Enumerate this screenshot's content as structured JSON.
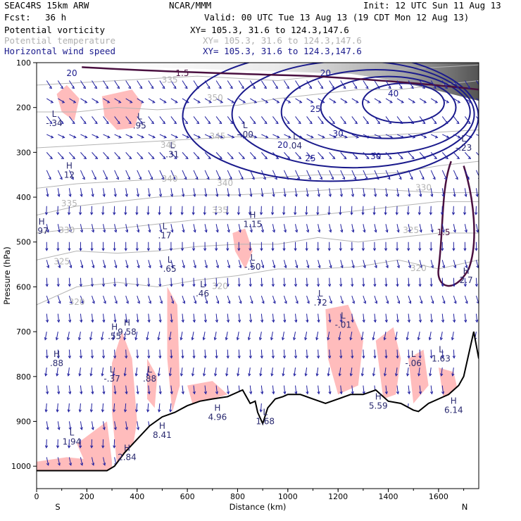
{
  "header": {
    "model": "SEAC4RS 15km ARW",
    "org": "NCAR/MMM",
    "init": "Init: 12 UTC Sun 11 Aug 13",
    "fcst_label": "Fcst:",
    "fcst_value": "36 h",
    "valid": "Valid: 00 UTC Tue 13 Aug 13 (19 CDT Mon 12 Aug 13)",
    "fields": [
      {
        "name": "Potential vorticity",
        "xy": "XY= 105.3, 31.6 to 124.3,147.6"
      },
      {
        "name": "Potential temperature",
        "xy": "XY= 105.3, 31.6 to 124.3,147.6"
      },
      {
        "name": "Horizontal wind speed",
        "xy": "XY= 105.3, 31.6 to 124.3,147.6"
      }
    ]
  },
  "colors": {
    "pv": "#4a1040",
    "theta": "#b4b4b4",
    "wind": "#1a1a8c",
    "vectors": "#2020a0",
    "shade_pink": "#ffbcbc",
    "terrain": "#000000"
  },
  "chart_data": {
    "type": "cross-section",
    "xlabel": "Distance (km)",
    "ylabel": "Pressure (hPa)",
    "xlim": [
      0,
      1760
    ],
    "ylim": [
      1050,
      100
    ],
    "x_ticks": [
      0,
      200,
      400,
      600,
      800,
      1000,
      1200,
      1400,
      1600
    ],
    "y_ticks": [
      100,
      200,
      300,
      400,
      500,
      600,
      700,
      800,
      900,
      1000
    ],
    "x_end_labels": {
      "left": "S",
      "right": "N"
    },
    "terrain": {
      "x": [
        0,
        150,
        280,
        310,
        350,
        400,
        450,
        500,
        550,
        600,
        650,
        700,
        760,
        820,
        850,
        870,
        880,
        900,
        920,
        950,
        980,
        1000,
        1050,
        1100,
        1150,
        1200,
        1250,
        1300,
        1350,
        1400,
        1450,
        1500,
        1520,
        1560,
        1600,
        1640,
        1680,
        1700,
        1740,
        1760
      ],
      "p": [
        1010,
        1010,
        1010,
        1000,
        970,
        940,
        910,
        890,
        880,
        865,
        855,
        850,
        845,
        830,
        860,
        855,
        880,
        905,
        870,
        850,
        845,
        840,
        840,
        850,
        860,
        850,
        840,
        840,
        830,
        855,
        860,
        875,
        878,
        860,
        850,
        840,
        820,
        800,
        700,
        760
      ]
    },
    "theta_isentropes": [
      {
        "value": 320,
        "p": [
          640,
          600,
          590,
          600,
          585,
          575,
          560,
          560,
          555,
          540,
          560,
          540
        ]
      },
      {
        "value": 325,
        "p": [
          540,
          520,
          525,
          520,
          510,
          505,
          505,
          490,
          500,
          490,
          480,
          480
        ]
      },
      {
        "value": 330,
        "p": [
          480,
          470,
          470,
          460,
          450,
          450,
          445,
          440,
          430,
          420,
          410,
          410
        ]
      },
      {
        "value": 335,
        "p": [
          440,
          420,
          410,
          400,
          395,
          395,
          390,
          385,
          380,
          385,
          390,
          390
        ]
      },
      {
        "value": 340,
        "p": [
          380,
          370,
          365,
          360,
          360,
          360,
          355,
          350,
          350,
          345,
          330,
          320
        ]
      },
      {
        "value": 345,
        "p": [
          290,
          285,
          280,
          275,
          270,
          265,
          270,
          270,
          265,
          260,
          255,
          250
        ]
      },
      {
        "value": 350,
        "p": [
          210,
          210,
          200,
          205,
          200,
          195,
          180,
          170,
          160,
          160,
          150,
          140
        ]
      },
      {
        "value": 355,
        "p": [
          150,
          145,
          140,
          135,
          130,
          135,
          140,
          130,
          120,
          115,
          110,
          105
        ]
      }
    ],
    "theta_x": [
      0,
      160,
      320,
      480,
      640,
      800,
      960,
      1120,
      1280,
      1440,
      1600,
      1760
    ],
    "wind_speed_contours": [
      {
        "value": 20,
        "center_x": 1170,
        "center_p": 220
      },
      {
        "value": 25,
        "center_x": 1260,
        "center_p": 215
      },
      {
        "value": 30,
        "center_x": 1350,
        "center_p": 210
      },
      {
        "value": 35,
        "center_x": 1400,
        "center_p": 200
      },
      {
        "value": 40,
        "center_x": 1460,
        "center_p": 190
      }
    ],
    "contour_labels": [
      {
        "text": "20",
        "x": 140,
        "p": 130,
        "kind": "wind"
      },
      {
        "text": "20",
        "x": 1150,
        "p": 130,
        "kind": "wind"
      },
      {
        "text": "20",
        "x": 980,
        "p": 290,
        "kind": "wind"
      },
      {
        "text": "25",
        "x": 1110,
        "p": 210,
        "kind": "wind"
      },
      {
        "text": "25",
        "x": 1090,
        "p": 320,
        "kind": "wind"
      },
      {
        "text": "30",
        "x": 1200,
        "p": 265,
        "kind": "wind"
      },
      {
        "text": "30",
        "x": 1350,
        "p": 315,
        "kind": "wind"
      },
      {
        "text": "40",
        "x": 1420,
        "p": 175,
        "kind": "wind"
      },
      {
        "text": "335",
        "x": 530,
        "p": 145,
        "kind": "theta"
      },
      {
        "text": "350",
        "x": 710,
        "p": 185,
        "kind": "theta"
      },
      {
        "text": "345",
        "x": 525,
        "p": 290,
        "kind": "theta"
      },
      {
        "text": "345",
        "x": 720,
        "p": 270,
        "kind": "theta"
      },
      {
        "text": "340",
        "x": 530,
        "p": 365,
        "kind": "theta"
      },
      {
        "text": "340",
        "x": 750,
        "p": 375,
        "kind": "theta"
      },
      {
        "text": "335",
        "x": 130,
        "p": 420,
        "kind": "theta"
      },
      {
        "text": "335",
        "x": 730,
        "p": 435,
        "kind": "theta"
      },
      {
        "text": "330",
        "x": 120,
        "p": 480,
        "kind": "theta"
      },
      {
        "text": "330",
        "x": 1540,
        "p": 385,
        "kind": "theta"
      },
      {
        "text": "325",
        "x": 100,
        "p": 550,
        "kind": "theta"
      },
      {
        "text": "325",
        "x": 1490,
        "p": 480,
        "kind": "theta"
      },
      {
        "text": "320",
        "x": 160,
        "p": 640,
        "kind": "theta"
      },
      {
        "text": "320",
        "x": 730,
        "p": 605,
        "kind": "theta"
      },
      {
        "text": "320",
        "x": 1520,
        "p": 565,
        "kind": "theta"
      },
      {
        "text": "1.5",
        "x": 580,
        "p": 130,
        "kind": "pv"
      },
      {
        "text": "1.5",
        "x": 1620,
        "p": 485,
        "kind": "pv"
      }
    ],
    "hl_markers": [
      {
        "type": "L",
        "value": "-.34",
        "x": 70,
        "p": 240
      },
      {
        "type": "H",
        "value": "12",
        "x": 130,
        "p": 355
      },
      {
        "type": "L",
        "value": ".95",
        "x": 410,
        "p": 245
      },
      {
        "type": "L",
        "value": ".31",
        "x": 540,
        "p": 310
      },
      {
        "type": "L",
        "value": "-.00",
        "x": 830,
        "p": 265
      },
      {
        "type": "L",
        "value": ".04",
        "x": 1030,
        "p": 290
      },
      {
        "type": "L",
        "value": ".17",
        "x": 510,
        "p": 490
      },
      {
        "type": "H",
        "value": "1.15",
        "x": 860,
        "p": 465
      },
      {
        "type": "H",
        "value": ".97",
        "x": 20,
        "p": 480
      },
      {
        "type": "L",
        "value": ".65",
        "x": 530,
        "p": 565
      },
      {
        "type": "L",
        "value": "-.50",
        "x": 860,
        "p": 560
      },
      {
        "type": "L",
        "value": ".46",
        "x": 660,
        "p": 620
      },
      {
        "type": "L",
        "value": ".72",
        "x": 1130,
        "p": 640
      },
      {
        "type": "L",
        "value": "-.01",
        "x": 1220,
        "p": 690
      },
      {
        "type": "H",
        "value": ".55",
        "x": 310,
        "p": 715
      },
      {
        "type": "H",
        "value": "9.58",
        "x": 360,
        "p": 705
      },
      {
        "type": "H",
        "value": ".88",
        "x": 80,
        "p": 775
      },
      {
        "type": "L",
        "value": "-.37",
        "x": 300,
        "p": 810
      },
      {
        "type": "L",
        "value": ".88",
        "x": 450,
        "p": 810
      },
      {
        "type": "L",
        "value": "-.06",
        "x": 1500,
        "p": 775
      },
      {
        "type": "L",
        "value": "1.63",
        "x": 1610,
        "p": 765
      },
      {
        "type": "H",
        "value": "5.59",
        "x": 1360,
        "p": 870
      },
      {
        "type": "H",
        "value": "6.14",
        "x": 1660,
        "p": 880
      },
      {
        "type": "H",
        "value": "4.96",
        "x": 720,
        "p": 895
      },
      {
        "type": "L",
        "value": "1.68",
        "x": 910,
        "p": 905
      },
      {
        "type": "H",
        "value": "8.41",
        "x": 500,
        "p": 935
      },
      {
        "type": "L",
        "value": "1.94",
        "x": 140,
        "p": 950
      },
      {
        "type": "H",
        "value": "2.84",
        "x": 360,
        "p": 985
      },
      {
        "type": "H",
        "value": "2.7",
        "x": 1710,
        "p": 590
      },
      {
        "type": "L",
        "value": "-.23",
        "x": 1700,
        "p": 295
      }
    ]
  }
}
